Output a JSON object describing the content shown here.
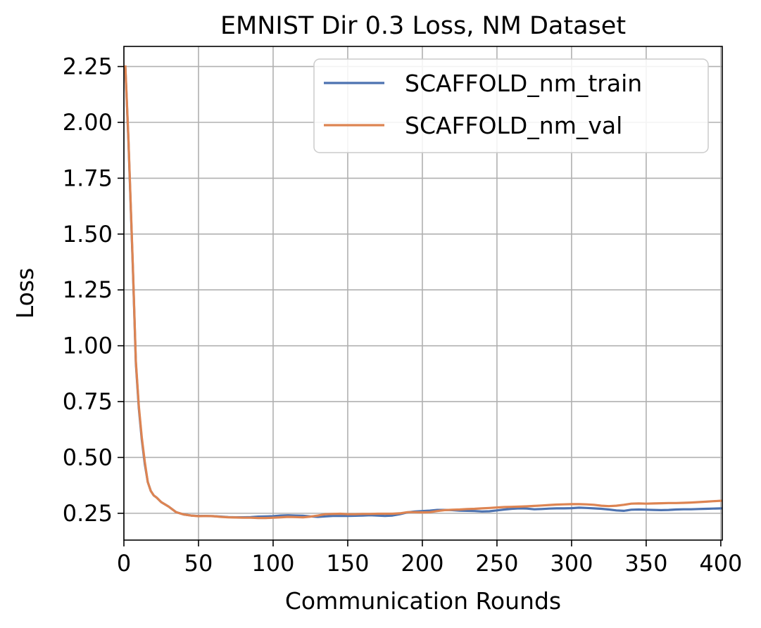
{
  "chart_data": {
    "type": "line",
    "title": "EMNIST Dir 0.3 Loss, NM Dataset",
    "xlabel": "Communication Rounds",
    "ylabel": "Loss",
    "xlim": [
      0,
      401
    ],
    "ylim": [
      0.13,
      2.34
    ],
    "xticks": [
      0,
      50,
      100,
      150,
      200,
      250,
      300,
      350,
      400
    ],
    "yticks": [
      0.25,
      0.5,
      0.75,
      1.0,
      1.25,
      1.5,
      1.75,
      2.0,
      2.25
    ],
    "xtick_labels": [
      "0",
      "50",
      "100",
      "150",
      "200",
      "250",
      "300",
      "350",
      "400"
    ],
    "ytick_labels": [
      "0.25",
      "0.50",
      "0.75",
      "1.00",
      "1.25",
      "1.50",
      "1.75",
      "2.00",
      "2.25"
    ],
    "grid": true,
    "legend_position": "top-right",
    "series": [
      {
        "name": "SCAFFOLD_nm_train",
        "color": "#4c72b0",
        "x": [
          1,
          3,
          6,
          8,
          10,
          12,
          14,
          16,
          18,
          20,
          22,
          25,
          30,
          35,
          40,
          45,
          50,
          55,
          60,
          65,
          70,
          75,
          80,
          85,
          90,
          95,
          100,
          105,
          110,
          115,
          120,
          125,
          130,
          135,
          140,
          145,
          150,
          155,
          160,
          165,
          170,
          175,
          180,
          185,
          190,
          195,
          200,
          205,
          210,
          215,
          220,
          225,
          230,
          235,
          240,
          245,
          250,
          255,
          260,
          265,
          270,
          275,
          280,
          285,
          290,
          295,
          300,
          305,
          310,
          315,
          320,
          325,
          330,
          335,
          340,
          345,
          350,
          355,
          360,
          365,
          370,
          375,
          380,
          385,
          390,
          395,
          400
        ],
        "y": [
          2.24,
          1.92,
          1.35,
          0.92,
          0.72,
          0.58,
          0.47,
          0.39,
          0.35,
          0.33,
          0.32,
          0.3,
          0.28,
          0.255,
          0.245,
          0.24,
          0.238,
          0.238,
          0.237,
          0.235,
          0.233,
          0.232,
          0.232,
          0.233,
          0.235,
          0.236,
          0.237,
          0.24,
          0.241,
          0.24,
          0.239,
          0.236,
          0.234,
          0.236,
          0.238,
          0.238,
          0.238,
          0.239,
          0.24,
          0.241,
          0.24,
          0.238,
          0.24,
          0.246,
          0.254,
          0.258,
          0.26,
          0.262,
          0.265,
          0.265,
          0.264,
          0.262,
          0.261,
          0.26,
          0.258,
          0.259,
          0.263,
          0.267,
          0.27,
          0.272,
          0.271,
          0.268,
          0.269,
          0.271,
          0.272,
          0.272,
          0.273,
          0.275,
          0.274,
          0.272,
          0.27,
          0.267,
          0.263,
          0.261,
          0.266,
          0.267,
          0.266,
          0.265,
          0.264,
          0.265,
          0.267,
          0.268,
          0.268,
          0.269,
          0.27,
          0.271,
          0.272
        ]
      },
      {
        "name": "SCAFFOLD_nm_val",
        "color": "#dd8452",
        "x": [
          1,
          3,
          6,
          8,
          10,
          12,
          14,
          16,
          18,
          20,
          22,
          25,
          30,
          35,
          40,
          45,
          50,
          55,
          60,
          65,
          70,
          75,
          80,
          85,
          90,
          95,
          100,
          105,
          110,
          115,
          120,
          125,
          130,
          135,
          140,
          145,
          150,
          155,
          160,
          165,
          170,
          175,
          180,
          185,
          190,
          195,
          200,
          205,
          210,
          215,
          220,
          225,
          230,
          235,
          240,
          245,
          250,
          255,
          260,
          265,
          270,
          275,
          280,
          285,
          290,
          295,
          300,
          305,
          310,
          315,
          320,
          325,
          330,
          335,
          340,
          345,
          350,
          355,
          360,
          365,
          370,
          375,
          380,
          385,
          390,
          395,
          400
        ],
        "y": [
          2.25,
          1.93,
          1.36,
          0.93,
          0.73,
          0.59,
          0.48,
          0.39,
          0.35,
          0.33,
          0.32,
          0.3,
          0.28,
          0.255,
          0.245,
          0.24,
          0.237,
          0.238,
          0.237,
          0.234,
          0.232,
          0.231,
          0.23,
          0.23,
          0.229,
          0.229,
          0.23,
          0.232,
          0.234,
          0.233,
          0.232,
          0.235,
          0.24,
          0.246,
          0.247,
          0.248,
          0.246,
          0.246,
          0.247,
          0.247,
          0.248,
          0.248,
          0.248,
          0.25,
          0.255,
          0.255,
          0.254,
          0.255,
          0.26,
          0.264,
          0.266,
          0.267,
          0.269,
          0.27,
          0.272,
          0.274,
          0.276,
          0.278,
          0.279,
          0.28,
          0.281,
          0.283,
          0.285,
          0.287,
          0.289,
          0.29,
          0.291,
          0.291,
          0.29,
          0.288,
          0.284,
          0.282,
          0.284,
          0.288,
          0.293,
          0.294,
          0.293,
          0.294,
          0.295,
          0.296,
          0.296,
          0.297,
          0.298,
          0.3,
          0.302,
          0.304,
          0.306
        ]
      }
    ]
  }
}
